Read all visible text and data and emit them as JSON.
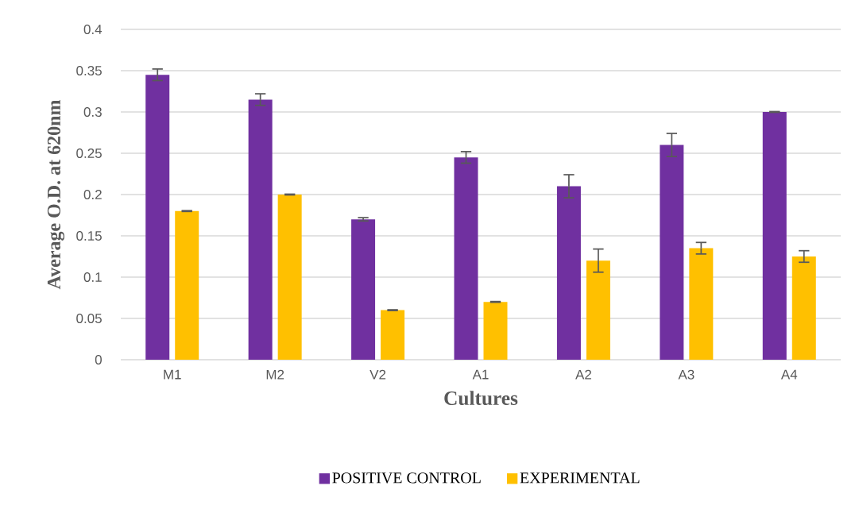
{
  "chart_data": {
    "type": "bar",
    "xlabel": "Cultures",
    "ylabel": "Average O.D. at 620nm",
    "categories": [
      "M1",
      "M2",
      "V2",
      "A1",
      "A2",
      "A3",
      "A4"
    ],
    "series": [
      {
        "name": "POSITIVE CONTROL",
        "color": "#7030a0",
        "values": [
          0.345,
          0.315,
          0.17,
          0.245,
          0.21,
          0.26,
          0.3
        ],
        "errors": [
          0.007,
          0.007,
          0.002,
          0.007,
          0.014,
          0.014,
          0.0005
        ]
      },
      {
        "name": "EXPERIMENTAL",
        "color": "#ffc000",
        "values": [
          0.18,
          0.2,
          0.06,
          0.07,
          0.12,
          0.135,
          0.125
        ],
        "errors": [
          0.0005,
          0.0005,
          0.0005,
          0.0005,
          0.014,
          0.007,
          0.007
        ]
      }
    ],
    "ylim": [
      0,
      0.4
    ],
    "yticks": [
      0,
      0.05,
      0.1,
      0.15,
      0.2,
      0.25,
      0.3,
      0.35,
      0.4
    ],
    "grid": "y",
    "legend": "bottom"
  }
}
